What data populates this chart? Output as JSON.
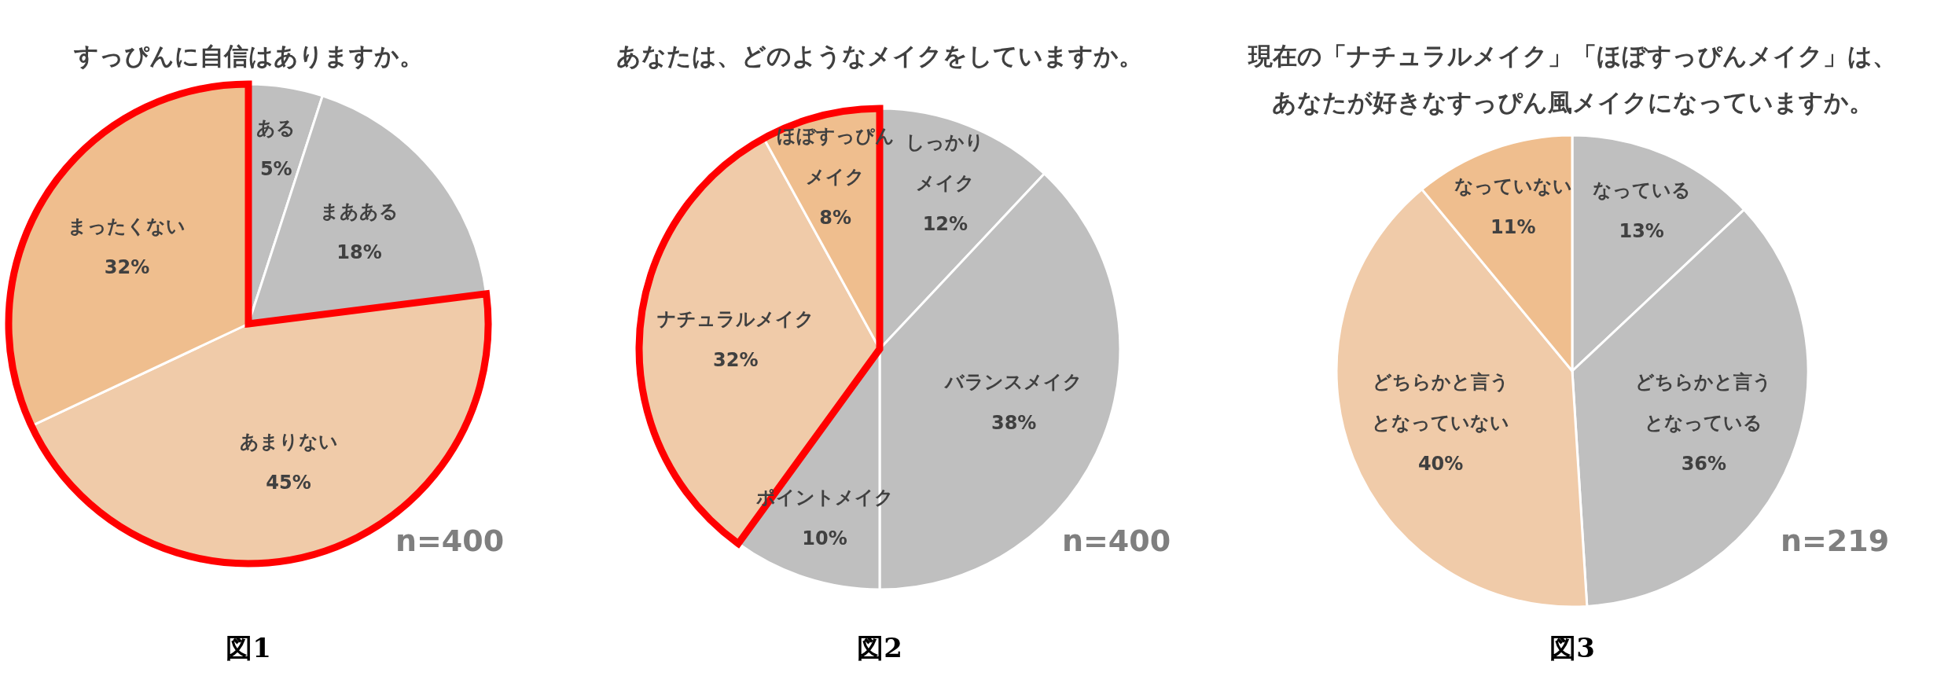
{
  "chart_data": [
    {
      "type": "pie",
      "title": "すっぴんに自信はありますか。",
      "categories": [
        "ある",
        "まあある",
        "あまりない",
        "まったくない"
      ],
      "values": [
        5,
        18,
        45,
        32
      ],
      "value_labels": [
        "5%",
        "18%",
        "45%",
        "32%"
      ],
      "colors": [
        "#bfbfbf",
        "#bfbfbf",
        "#f0cba9",
        "#efbe8e"
      ],
      "annotations": [
        "n=400",
        "図1"
      ]
    },
    {
      "type": "pie",
      "title": "あなたは、どのようなメイクをしていますか。",
      "categories": [
        "しっかりメイク",
        "バランスメイク",
        "ポイントメイク",
        "ナチュラルメイク",
        "ほぼすっぴんメイク"
      ],
      "values": [
        12,
        38,
        10,
        32,
        8
      ],
      "value_labels": [
        "12%",
        "38%",
        "10%",
        "32%",
        "8%"
      ],
      "colors": [
        "#bfbfbf",
        "#bfbfbf",
        "#bfbfbf",
        "#f0cba9",
        "#efbe8e"
      ],
      "annotations": [
        "n=400",
        "図2"
      ]
    },
    {
      "type": "pie",
      "title": "現在の「ナチュラルメイク」「ほぼすっぴんメイク」は、あなたが好きなすっぴん風メイクになっていますか。",
      "categories": [
        "なっている",
        "どちらかと言うとなっている",
        "どちらかと言うとなっていない",
        "なっていない"
      ],
      "values": [
        13,
        36,
        40,
        11
      ],
      "value_labels": [
        "13%",
        "36%",
        "40%",
        "11%"
      ],
      "colors": [
        "#bfbfbf",
        "#bfbfbf",
        "#f0cba9",
        "#efbe8e"
      ],
      "annotations": [
        "n=219",
        "図3"
      ]
    }
  ]
}
